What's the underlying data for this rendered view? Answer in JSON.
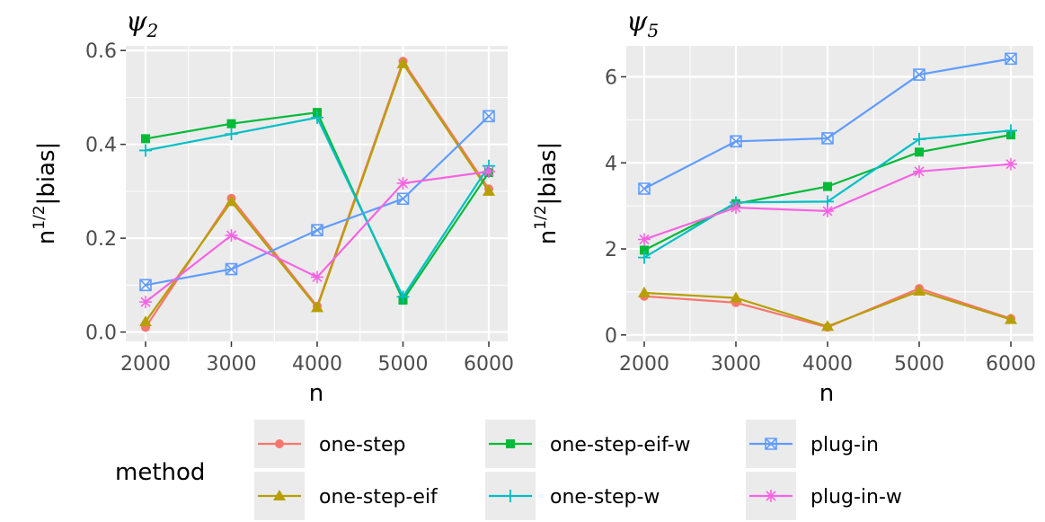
{
  "chart_data": [
    {
      "type": "line",
      "title": "ψ",
      "title_subscript": "2",
      "xlabel": "n",
      "ylabel_base": "n",
      "ylabel_exp": "1/2",
      "ylabel_rest": "|bias|",
      "x": [
        2000,
        3000,
        4000,
        5000,
        6000
      ],
      "xticks": [
        "2000",
        "3000",
        "4000",
        "5000",
        "6000"
      ],
      "yticks": [
        0.0,
        0.2,
        0.4,
        0.6
      ],
      "ytick_labels": [
        "0.0",
        "0.2",
        "0.4",
        "0.6"
      ],
      "ylim": [
        -0.02,
        0.61
      ],
      "grid": true,
      "series": [
        {
          "name": "one-step",
          "values": [
            0.01,
            0.285,
            0.055,
            0.577,
            0.305
          ]
        },
        {
          "name": "one-step-eif",
          "values": [
            0.022,
            0.278,
            0.052,
            0.572,
            0.3
          ]
        },
        {
          "name": "one-step-eif-w",
          "values": [
            0.412,
            0.444,
            0.468,
            0.068,
            0.34
          ]
        },
        {
          "name": "one-step-w",
          "values": [
            0.387,
            0.422,
            0.457,
            0.075,
            0.354
          ]
        },
        {
          "name": "plug-in",
          "values": [
            0.1,
            0.134,
            0.217,
            0.284,
            0.46
          ]
        },
        {
          "name": "plug-in-w",
          "values": [
            0.064,
            0.206,
            0.117,
            0.317,
            0.342
          ]
        }
      ]
    },
    {
      "type": "line",
      "title": "ψ",
      "title_subscript": "5",
      "xlabel": "n",
      "ylabel_base": "n",
      "ylabel_exp": "1/2",
      "ylabel_rest": "|bias|",
      "x": [
        2000,
        3000,
        4000,
        5000,
        6000
      ],
      "xticks": [
        "2000",
        "3000",
        "4000",
        "5000",
        "6000"
      ],
      "yticks": [
        0,
        2,
        4,
        6
      ],
      "ytick_labels": [
        "0",
        "2",
        "4",
        "6"
      ],
      "ylim": [
        -0.15,
        6.72
      ],
      "grid": true,
      "series": [
        {
          "name": "one-step",
          "values": [
            0.9,
            0.75,
            0.18,
            1.08,
            0.38
          ]
        },
        {
          "name": "one-step-eif",
          "values": [
            0.98,
            0.86,
            0.2,
            1.02,
            0.36
          ]
        },
        {
          "name": "one-step-eif-w",
          "values": [
            1.97,
            3.05,
            3.45,
            4.25,
            4.65
          ]
        },
        {
          "name": "one-step-w",
          "values": [
            1.8,
            3.08,
            3.1,
            4.55,
            4.75
          ]
        },
        {
          "name": "plug-in",
          "values": [
            3.4,
            4.5,
            4.57,
            6.05,
            6.42
          ]
        },
        {
          "name": "plug-in-w",
          "values": [
            2.22,
            2.96,
            2.88,
            3.8,
            3.97
          ]
        }
      ]
    }
  ],
  "legend": {
    "title": "method",
    "position": "bottom",
    "items": [
      {
        "label": "one-step",
        "color": "#F8766D",
        "marker": "circle"
      },
      {
        "label": "one-step-eif",
        "color": "#B79F00",
        "marker": "triangle"
      },
      {
        "label": "one-step-eif-w",
        "color": "#00BA38",
        "marker": "square"
      },
      {
        "label": "one-step-w",
        "color": "#00BFC4",
        "marker": "plus"
      },
      {
        "label": "plug-in",
        "color": "#619CFF",
        "marker": "square-cross"
      },
      {
        "label": "plug-in-w",
        "color": "#F564E3",
        "marker": "asterisk"
      }
    ]
  }
}
